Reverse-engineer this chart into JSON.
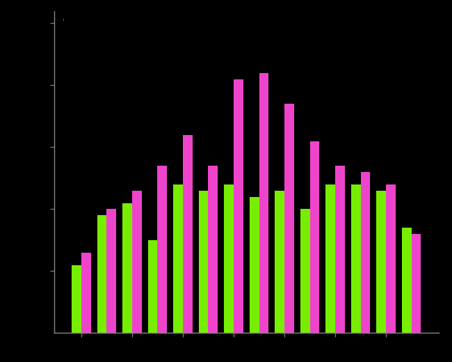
{
  "background_color": "#000000",
  "axes_bg_color": "#000000",
  "bar_color_green": "#77ee00",
  "bar_color_pink": "#ee44cc",
  "green_values": [
    0.55,
    0.95,
    1.05,
    0.75,
    1.2,
    1.15,
    1.2,
    1.1,
    1.15,
    1.0,
    1.2,
    1.2,
    1.15,
    0.85
  ],
  "pink_values": [
    0.65,
    1.0,
    1.15,
    1.35,
    1.6,
    1.35,
    2.05,
    2.1,
    1.85,
    1.55,
    1.35,
    1.3,
    1.2,
    0.8
  ],
  "ylim": [
    0,
    2.6
  ],
  "ytick_positions": [
    0.5,
    1.0,
    1.5,
    2.0,
    2.5
  ],
  "xtick_positions": [
    0,
    2,
    4,
    6,
    8,
    10,
    12
  ],
  "spine_color": "#888888",
  "bar_width": 0.38,
  "fig_width": 6.5,
  "fig_height": 5.2,
  "dpi": 100
}
